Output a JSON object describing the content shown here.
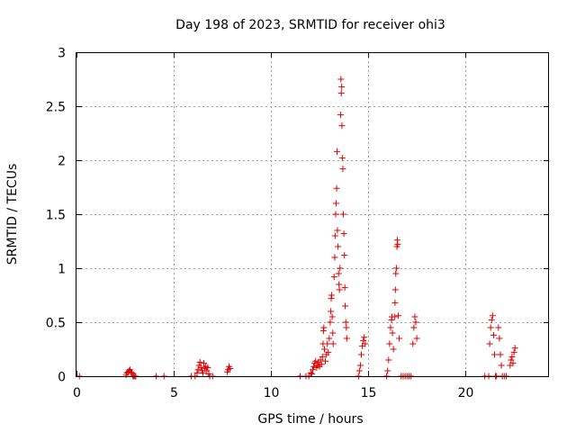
{
  "chart_data": {
    "type": "scatter",
    "title": "Day 198 of 2023, SRMTID for receiver ohi3",
    "xlabel": "GPS time / hours",
    "ylabel": "SRMTID / TECUs",
    "xlim": [
      0,
      24.3
    ],
    "ylim": [
      0,
      3
    ],
    "xticks": [
      0,
      5,
      10,
      15,
      20
    ],
    "xtick_labels": [
      "0",
      "5",
      "10",
      "15",
      "20"
    ],
    "yticks": [
      0,
      0.5,
      1,
      1.5,
      2,
      2.5,
      3
    ],
    "ytick_labels": [
      "0",
      "0.5",
      "1",
      "1.5",
      "2",
      "2.5",
      "3"
    ],
    "grid": true,
    "marker": "+",
    "color": "#e00000",
    "series": [
      {
        "name": "SRMTID",
        "points": [
          [
            0.15,
            0.0
          ],
          [
            2.55,
            0.01
          ],
          [
            2.6,
            0.03
          ],
          [
            2.65,
            0.04
          ],
          [
            2.7,
            0.05
          ],
          [
            2.75,
            0.06
          ],
          [
            2.8,
            0.04
          ],
          [
            2.85,
            0.03
          ],
          [
            2.9,
            0.0
          ],
          [
            2.95,
            0.0
          ],
          [
            3.0,
            0.0
          ],
          [
            3.05,
            0.0
          ],
          [
            4.1,
            0.0
          ],
          [
            4.5,
            0.0
          ],
          [
            5.9,
            0.0
          ],
          [
            6.1,
            0.0
          ],
          [
            6.2,
            0.03
          ],
          [
            6.25,
            0.06
          ],
          [
            6.3,
            0.1
          ],
          [
            6.35,
            0.13
          ],
          [
            6.4,
            0.08
          ],
          [
            6.45,
            0.05
          ],
          [
            6.5,
            0.03
          ],
          [
            6.55,
            0.12
          ],
          [
            6.6,
            0.07
          ],
          [
            6.65,
            0.09
          ],
          [
            6.7,
            0.05
          ],
          [
            6.75,
            0.08
          ],
          [
            6.8,
            0.02
          ],
          [
            6.85,
            0.0
          ],
          [
            7.0,
            0.0
          ],
          [
            7.75,
            0.04
          ],
          [
            7.8,
            0.06
          ],
          [
            7.85,
            0.09
          ],
          [
            7.9,
            0.07
          ],
          [
            11.5,
            0.0
          ],
          [
            11.8,
            0.0
          ],
          [
            11.95,
            0.0
          ],
          [
            12.05,
            0.03
          ],
          [
            12.1,
            0.02
          ],
          [
            12.15,
            0.06
          ],
          [
            12.2,
            0.09
          ],
          [
            12.25,
            0.12
          ],
          [
            12.3,
            0.14
          ],
          [
            12.35,
            0.08
          ],
          [
            12.4,
            0.1
          ],
          [
            12.45,
            0.13
          ],
          [
            12.5,
            0.09
          ],
          [
            12.55,
            0.15
          ],
          [
            12.6,
            0.11
          ],
          [
            12.65,
            0.18
          ],
          [
            12.68,
            0.3
          ],
          [
            12.7,
            0.42
          ],
          [
            12.72,
            0.45
          ],
          [
            12.75,
            0.25
          ],
          [
            12.8,
            0.14
          ],
          [
            12.85,
            0.2
          ],
          [
            12.9,
            0.3
          ],
          [
            12.95,
            0.22
          ],
          [
            13.0,
            0.35
          ],
          [
            13.05,
            0.5
          ],
          [
            13.08,
            0.6
          ],
          [
            13.1,
            0.72
          ],
          [
            13.12,
            0.75
          ],
          [
            13.15,
            0.55
          ],
          [
            13.18,
            0.4
          ],
          [
            13.2,
            0.3
          ],
          [
            13.25,
            0.92
          ],
          [
            13.28,
            1.1
          ],
          [
            13.3,
            1.3
          ],
          [
            13.33,
            1.5
          ],
          [
            13.35,
            1.6
          ],
          [
            13.38,
            1.74
          ],
          [
            13.4,
            2.08
          ],
          [
            13.42,
            1.35
          ],
          [
            13.45,
            1.2
          ],
          [
            13.48,
            0.95
          ],
          [
            13.5,
            0.85
          ],
          [
            13.52,
            0.8
          ],
          [
            13.55,
            1.0
          ],
          [
            13.58,
            2.42
          ],
          [
            13.6,
            2.75
          ],
          [
            13.62,
            2.62
          ],
          [
            13.64,
            2.68
          ],
          [
            13.65,
            2.32
          ],
          [
            13.67,
            2.02
          ],
          [
            13.7,
            1.92
          ],
          [
            13.72,
            1.5
          ],
          [
            13.75,
            1.32
          ],
          [
            13.78,
            1.12
          ],
          [
            13.8,
            0.82
          ],
          [
            13.82,
            0.65
          ],
          [
            13.85,
            0.5
          ],
          [
            13.88,
            0.45
          ],
          [
            13.9,
            0.35
          ],
          [
            14.5,
            0.0
          ],
          [
            14.55,
            0.05
          ],
          [
            14.6,
            0.1
          ],
          [
            14.65,
            0.2
          ],
          [
            14.7,
            0.28
          ],
          [
            14.75,
            0.33
          ],
          [
            14.8,
            0.36
          ],
          [
            14.85,
            0.3
          ],
          [
            15.95,
            0.0
          ],
          [
            16.0,
            0.05
          ],
          [
            16.05,
            0.15
          ],
          [
            16.1,
            0.3
          ],
          [
            16.15,
            0.45
          ],
          [
            16.2,
            0.52
          ],
          [
            16.22,
            0.55
          ],
          [
            16.25,
            0.4
          ],
          [
            16.3,
            0.25
          ],
          [
            16.35,
            0.55
          ],
          [
            16.38,
            0.68
          ],
          [
            16.4,
            0.8
          ],
          [
            16.42,
            0.95
          ],
          [
            16.45,
            1.0
          ],
          [
            16.48,
            1.2
          ],
          [
            16.5,
            1.26
          ],
          [
            16.52,
            1.22
          ],
          [
            16.55,
            0.56
          ],
          [
            16.6,
            0.35
          ],
          [
            16.7,
            0.0
          ],
          [
            16.8,
            0.0
          ],
          [
            16.9,
            0.0
          ],
          [
            17.0,
            0.0
          ],
          [
            17.1,
            0.0
          ],
          [
            17.2,
            0.0
          ],
          [
            17.3,
            0.3
          ],
          [
            17.35,
            0.45
          ],
          [
            17.4,
            0.55
          ],
          [
            17.45,
            0.5
          ],
          [
            17.5,
            0.35
          ],
          [
            21.0,
            0.0
          ],
          [
            21.2,
            0.0
          ],
          [
            21.25,
            0.3
          ],
          [
            21.3,
            0.45
          ],
          [
            21.35,
            0.52
          ],
          [
            21.4,
            0.56
          ],
          [
            21.45,
            0.38
          ],
          [
            21.5,
            0.2
          ],
          [
            21.55,
            0.0
          ],
          [
            21.6,
            0.0
          ],
          [
            21.7,
            0.45
          ],
          [
            21.75,
            0.35
          ],
          [
            21.8,
            0.2
          ],
          [
            21.85,
            0.1
          ],
          [
            21.9,
            0.0
          ],
          [
            22.0,
            0.0
          ],
          [
            22.1,
            0.0
          ],
          [
            22.3,
            0.1
          ],
          [
            22.35,
            0.15
          ],
          [
            22.4,
            0.18
          ],
          [
            22.45,
            0.12
          ],
          [
            22.5,
            0.22
          ],
          [
            22.55,
            0.26
          ]
        ]
      }
    ]
  }
}
